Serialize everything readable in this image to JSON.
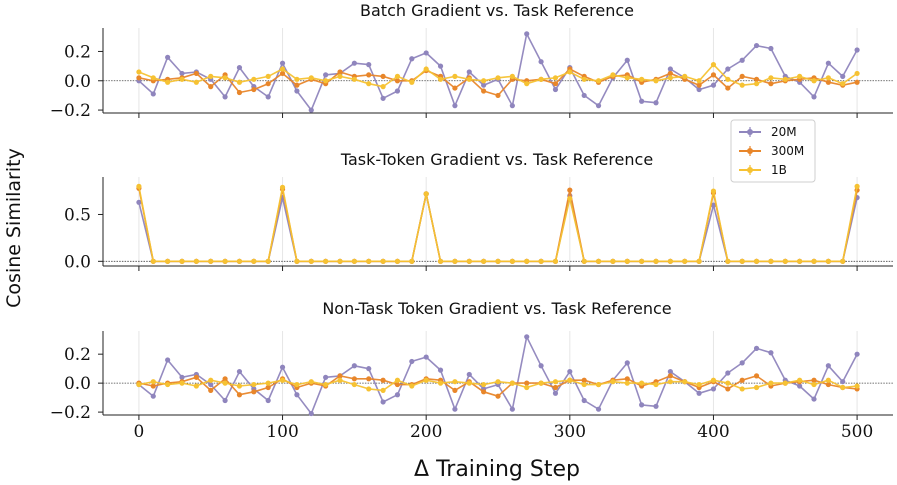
{
  "figure": {
    "ylabel": "Cosine Similarity",
    "xlabel": "Δ Training Step",
    "xticks": [
      "0",
      "100",
      "200",
      "300",
      "400",
      "500"
    ],
    "legend": {
      "placement": "right of middle panel",
      "entries": [
        "20M",
        "300M",
        "1B"
      ]
    },
    "colors": {
      "20M": "#8f85bd",
      "300M": "#e8862a",
      "1B": "#f6c233",
      "zero_line": "#444444",
      "grid": "#e6e6e6",
      "axis": "#222222"
    }
  },
  "chart_data": [
    {
      "type": "line",
      "title": "Batch Gradient vs. Task Reference",
      "ylim": [
        -0.22,
        0.36
      ],
      "yticks": [
        0.2,
        0.0,
        -0.2
      ],
      "ytick_labels": [
        "0.2",
        "0.0",
        "−0.2"
      ],
      "grid": "vertical",
      "zero_line": true,
      "x": [
        0,
        10,
        20,
        30,
        40,
        50,
        60,
        70,
        80,
        90,
        100,
        110,
        120,
        130,
        140,
        150,
        160,
        170,
        180,
        190,
        200,
        210,
        220,
        230,
        240,
        250,
        260,
        270,
        280,
        290,
        300,
        310,
        320,
        330,
        340,
        350,
        360,
        370,
        380,
        390,
        400,
        410,
        420,
        430,
        440,
        450,
        460,
        470,
        480,
        490,
        500
      ],
      "series": [
        {
          "name": "20M",
          "values": [
            0.0,
            -0.09,
            0.16,
            0.05,
            0.06,
            0.01,
            -0.11,
            0.09,
            -0.04,
            -0.11,
            0.12,
            -0.07,
            -0.2,
            0.04,
            0.05,
            0.12,
            0.11,
            -0.12,
            -0.07,
            0.15,
            0.19,
            0.1,
            -0.17,
            0.06,
            -0.03,
            0.01,
            -0.17,
            0.32,
            0.13,
            -0.06,
            0.09,
            -0.1,
            -0.17,
            0.02,
            0.14,
            -0.14,
            -0.15,
            0.08,
            0.02,
            -0.06,
            -0.03,
            0.08,
            0.14,
            0.24,
            0.22,
            0.03,
            -0.01,
            -0.11,
            0.12,
            0.03,
            0.21
          ]
        },
        {
          "name": "300M",
          "values": [
            0.02,
            0.0,
            0.01,
            0.02,
            0.05,
            -0.04,
            0.04,
            -0.08,
            -0.06,
            -0.02,
            0.05,
            -0.03,
            0.01,
            -0.02,
            0.06,
            0.03,
            0.04,
            0.03,
            0.0,
            0.0,
            0.07,
            0.03,
            -0.05,
            0.02,
            -0.07,
            -0.1,
            0.01,
            0.0,
            0.01,
            -0.02,
            0.08,
            0.03,
            -0.01,
            0.03,
            0.04,
            -0.01,
            0.01,
            0.05,
            0.01,
            -0.03,
            0.04,
            -0.05,
            0.03,
            0.01,
            -0.02,
            0.0,
            0.01,
            0.02,
            -0.01,
            -0.03,
            -0.01
          ]
        },
        {
          "name": "1B",
          "values": [
            0.06,
            0.02,
            -0.01,
            0.01,
            -0.01,
            0.03,
            0.02,
            -0.01,
            0.01,
            0.03,
            0.08,
            0.01,
            0.02,
            0.0,
            0.03,
            0.01,
            -0.02,
            -0.04,
            0.03,
            -0.01,
            0.08,
            0.01,
            0.03,
            0.01,
            0.0,
            0.02,
            0.03,
            -0.02,
            0.01,
            0.02,
            0.06,
            0.01,
            0.0,
            0.04,
            0.02,
            0.01,
            0.0,
            0.02,
            0.03,
            0.0,
            0.11,
            0.01,
            -0.03,
            -0.02,
            0.02,
            0.01,
            0.03,
            0.0,
            0.02,
            -0.02,
            0.05
          ]
        }
      ]
    },
    {
      "type": "line",
      "title": "Task-Token Gradient vs. Task Reference",
      "ylim": [
        -0.05,
        0.9
      ],
      "yticks": [
        0.5,
        0.0
      ],
      "ytick_labels": [
        "0.5",
        "0.0"
      ],
      "grid": "vertical",
      "zero_line": true,
      "x": [
        0,
        10,
        20,
        30,
        40,
        50,
        60,
        70,
        80,
        90,
        100,
        110,
        120,
        130,
        140,
        150,
        160,
        170,
        180,
        190,
        200,
        210,
        220,
        230,
        240,
        250,
        260,
        270,
        280,
        290,
        300,
        310,
        320,
        330,
        340,
        350,
        360,
        370,
        380,
        390,
        400,
        410,
        420,
        430,
        440,
        450,
        460,
        470,
        480,
        490,
        500
      ],
      "series": [
        {
          "name": "20M",
          "values": [
            0.63,
            0,
            0,
            0,
            0,
            0,
            0,
            0,
            0,
            0,
            0.68,
            0,
            0,
            0,
            0,
            0,
            0,
            0,
            0,
            0,
            0.72,
            0,
            0,
            0,
            0,
            0,
            0,
            0,
            0,
            0,
            0.7,
            0,
            0,
            0,
            0,
            0,
            0,
            0,
            0,
            0,
            0.6,
            0,
            0,
            0,
            0,
            0,
            0,
            0,
            0,
            0,
            0.68
          ]
        },
        {
          "name": "300M",
          "values": [
            0.78,
            0,
            0,
            0,
            0,
            0,
            0,
            0,
            0,
            0,
            0.77,
            0,
            0,
            0,
            0,
            0,
            0,
            0,
            0,
            0,
            0.72,
            0,
            0,
            0,
            0,
            0,
            0,
            0,
            0,
            0,
            0.76,
            0,
            0,
            0,
            0,
            0,
            0,
            0,
            0,
            0,
            0.73,
            0,
            0,
            0,
            0,
            0,
            0,
            0,
            0,
            0,
            0.76
          ]
        },
        {
          "name": "1B",
          "values": [
            0.8,
            0,
            0,
            0,
            0,
            0,
            0,
            0,
            0,
            0,
            0.79,
            0,
            0,
            0,
            0,
            0,
            0,
            0,
            0,
            0,
            0.72,
            0,
            0,
            0,
            0,
            0,
            0,
            0,
            0,
            0,
            0.67,
            0,
            0,
            0,
            0,
            0,
            0,
            0,
            0,
            0,
            0.75,
            0,
            0,
            0,
            0,
            0,
            0,
            0,
            0,
            0,
            0.8
          ]
        }
      ]
    },
    {
      "type": "line",
      "title": "Non-Task Token Gradient vs. Task Reference",
      "ylim": [
        -0.22,
        0.36
      ],
      "yticks": [
        0.2,
        0.0,
        -0.2
      ],
      "ytick_labels": [
        "0.2",
        "0.0",
        "−0.2"
      ],
      "grid": "vertical",
      "zero_line": true,
      "x": [
        0,
        10,
        20,
        30,
        40,
        50,
        60,
        70,
        80,
        90,
        100,
        110,
        120,
        130,
        140,
        150,
        160,
        170,
        180,
        190,
        200,
        210,
        220,
        230,
        240,
        250,
        260,
        270,
        280,
        290,
        300,
        310,
        320,
        330,
        340,
        350,
        360,
        370,
        380,
        390,
        400,
        410,
        420,
        430,
        440,
        450,
        460,
        470,
        480,
        490,
        500
      ],
      "series": [
        {
          "name": "20M",
          "values": [
            -0.01,
            -0.09,
            0.16,
            0.04,
            0.06,
            -0.01,
            -0.12,
            0.08,
            -0.04,
            -0.12,
            0.11,
            -0.08,
            -0.21,
            0.04,
            0.05,
            0.12,
            0.1,
            -0.13,
            -0.08,
            0.15,
            0.18,
            0.09,
            -0.18,
            0.06,
            -0.04,
            -0.01,
            -0.18,
            0.32,
            0.12,
            -0.07,
            0.08,
            -0.12,
            -0.18,
            0.02,
            0.14,
            -0.15,
            -0.16,
            0.08,
            0.01,
            -0.07,
            -0.04,
            0.07,
            0.14,
            0.24,
            0.21,
            0.02,
            -0.02,
            -0.11,
            0.12,
            0.01,
            0.2
          ]
        },
        {
          "name": "300M",
          "values": [
            0.0,
            -0.02,
            0.0,
            0.01,
            0.04,
            -0.05,
            0.03,
            -0.08,
            -0.06,
            -0.03,
            0.03,
            -0.03,
            0.0,
            -0.02,
            0.05,
            0.03,
            0.03,
            0.02,
            -0.01,
            -0.01,
            0.03,
            0.02,
            -0.05,
            0.01,
            -0.06,
            -0.09,
            0.0,
            0.0,
            0.0,
            -0.03,
            0.02,
            0.02,
            -0.01,
            0.02,
            0.03,
            -0.02,
            0.01,
            0.05,
            0.01,
            -0.03,
            0.01,
            -0.04,
            0.02,
            0.05,
            -0.02,
            0.0,
            0.01,
            0.02,
            -0.01,
            -0.03,
            -0.04
          ]
        },
        {
          "name": "1B",
          "values": [
            -0.01,
            0.01,
            -0.01,
            0.0,
            -0.02,
            0.02,
            0.0,
            -0.02,
            -0.01,
            0.0,
            0.02,
            -0.01,
            0.01,
            -0.01,
            0.02,
            -0.01,
            -0.04,
            -0.05,
            0.02,
            -0.02,
            0.02,
            0.0,
            0.01,
            0.0,
            -0.01,
            0.01,
            0.0,
            -0.03,
            0.0,
            0.01,
            0.02,
            -0.01,
            -0.01,
            0.01,
            0.0,
            0.0,
            -0.01,
            0.01,
            0.01,
            -0.01,
            0.02,
            0.0,
            -0.04,
            -0.03,
            0.0,
            0.0,
            0.02,
            -0.01,
            0.02,
            -0.03,
            -0.02
          ]
        }
      ]
    }
  ]
}
